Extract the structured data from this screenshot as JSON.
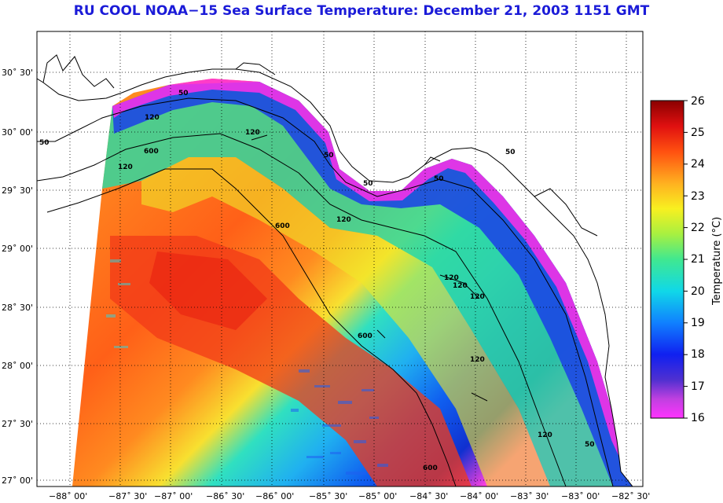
{
  "title": "RU COOL  NOAA−15  Sea Surface Temperature:  December 21, 2003 1151 GMT",
  "map": {
    "lat_labels": [
      "30˚ 30'",
      "30˚ 00'",
      "29˚ 30'",
      "29˚ 00'",
      "28˚ 30'",
      "28˚ 00'",
      "27˚ 30'",
      "27˚ 00'"
    ],
    "lon_labels": [
      "−88˚ 00'",
      "−87˚ 30'",
      "−87˚ 00'",
      "−86˚ 30'",
      "−86˚ 00'",
      "−85˚ 30'",
      "−85˚ 00'",
      "−84˚ 30'",
      "−84˚ 00'",
      "−83˚ 30'",
      "−83˚ 00'",
      "−82˚ 30'"
    ],
    "contour_labels": [
      "50",
      "120",
      "120",
      "600",
      "120",
      "50",
      "120",
      "50",
      "50",
      "600",
      "120",
      "120",
      "120",
      "50",
      "600",
      "120",
      "120",
      "50",
      "600",
      "50"
    ]
  },
  "colorbar": {
    "title": "Temperature (°C)",
    "tick_labels": [
      "26",
      "25",
      "24",
      "23",
      "22",
      "21",
      "20",
      "19",
      "18",
      "17",
      "16"
    ],
    "min": 16,
    "max": 26
  }
}
